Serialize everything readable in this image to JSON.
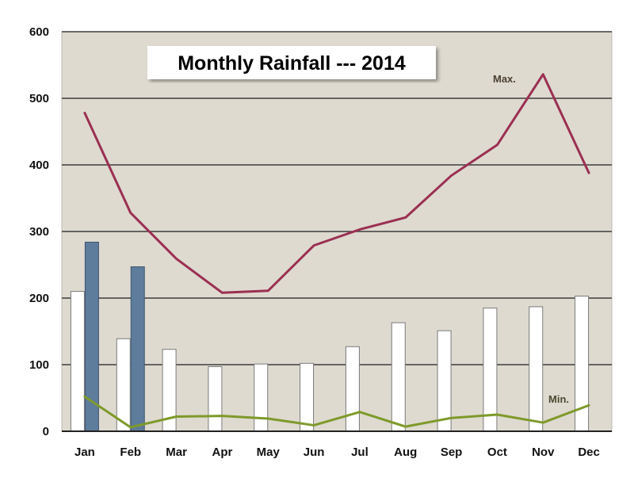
{
  "chart_data": {
    "type": "bar",
    "title": "Monthly Rainfall --- 2014",
    "categories": [
      "Jan",
      "Feb",
      "Mar",
      "Apr",
      "May",
      "Jun",
      "Jul",
      "Aug",
      "Sep",
      "Oct",
      "Nov",
      "Dec"
    ],
    "y_ticks": [
      "0",
      "100",
      "200",
      "300",
      "400",
      "500",
      "600"
    ],
    "ylim": [
      0,
      600
    ],
    "grid": true,
    "xlabel": "",
    "ylabel": "",
    "series": [
      {
        "kind": "bar",
        "color": "#ffffff",
        "values": [
          210,
          139,
          123,
          97,
          101,
          102,
          127,
          163,
          151,
          185,
          187,
          203
        ]
      },
      {
        "kind": "bar",
        "color": "#5e7c9b",
        "values": [
          284,
          247,
          null,
          null,
          null,
          null,
          null,
          null,
          null,
          null,
          null,
          null
        ]
      },
      {
        "kind": "line",
        "name": "Max.",
        "color": "#9b2f52",
        "values": [
          478,
          328,
          259,
          208,
          211,
          279,
          303,
          321,
          384,
          430,
          536,
          388
        ]
      },
      {
        "kind": "line",
        "name": "Min.",
        "color": "#7e9a2a",
        "values": [
          52,
          6,
          22,
          23,
          19,
          9,
          29,
          7,
          20,
          25,
          13,
          39
        ]
      }
    ],
    "colors": {
      "plot_background": "#dedad0",
      "gridline": "#3d3d3d",
      "max_label": "#4a3f30",
      "min_label": "#4a4a30"
    }
  }
}
